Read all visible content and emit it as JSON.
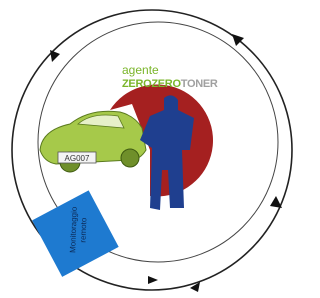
{
  "logo": {
    "prefix": "agente",
    "brand_part1": "ZEROZERO",
    "brand_part2": "TONER"
  },
  "car": {
    "plate": "AG007"
  },
  "badge": {
    "line1": "Monitoraggio",
    "line2": "remoto"
  }
}
